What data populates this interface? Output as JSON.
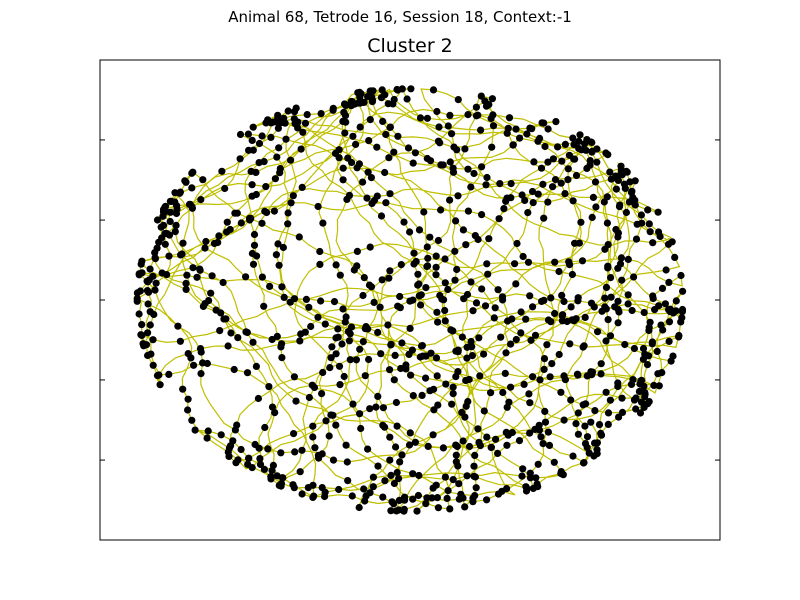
{
  "figure": {
    "suptitle": "Animal 68, Tetrode 16, Session 18, Context:-1",
    "title": "Cluster 2"
  },
  "chart_data": {
    "type": "scatter",
    "title": "Cluster 2",
    "xlabel": "",
    "ylabel": "",
    "show_tick_labels": false,
    "grid": false,
    "legend": "none",
    "xlim": [
      -1.0,
      1.0
    ],
    "ylim": [
      -1.0,
      1.0
    ],
    "arena": {
      "shape": "ellipse",
      "center": [
        0.0,
        0.0
      ],
      "radius_x": 0.88,
      "radius_y": 0.88
    },
    "series": [
      {
        "kind": "path",
        "color": "#bfbf00"
      },
      {
        "kind": "spikes",
        "color": "#000000"
      }
    ],
    "ticks": {
      "y": [
        -0.667,
        -0.333,
        0.0,
        0.333,
        0.667
      ]
    }
  }
}
